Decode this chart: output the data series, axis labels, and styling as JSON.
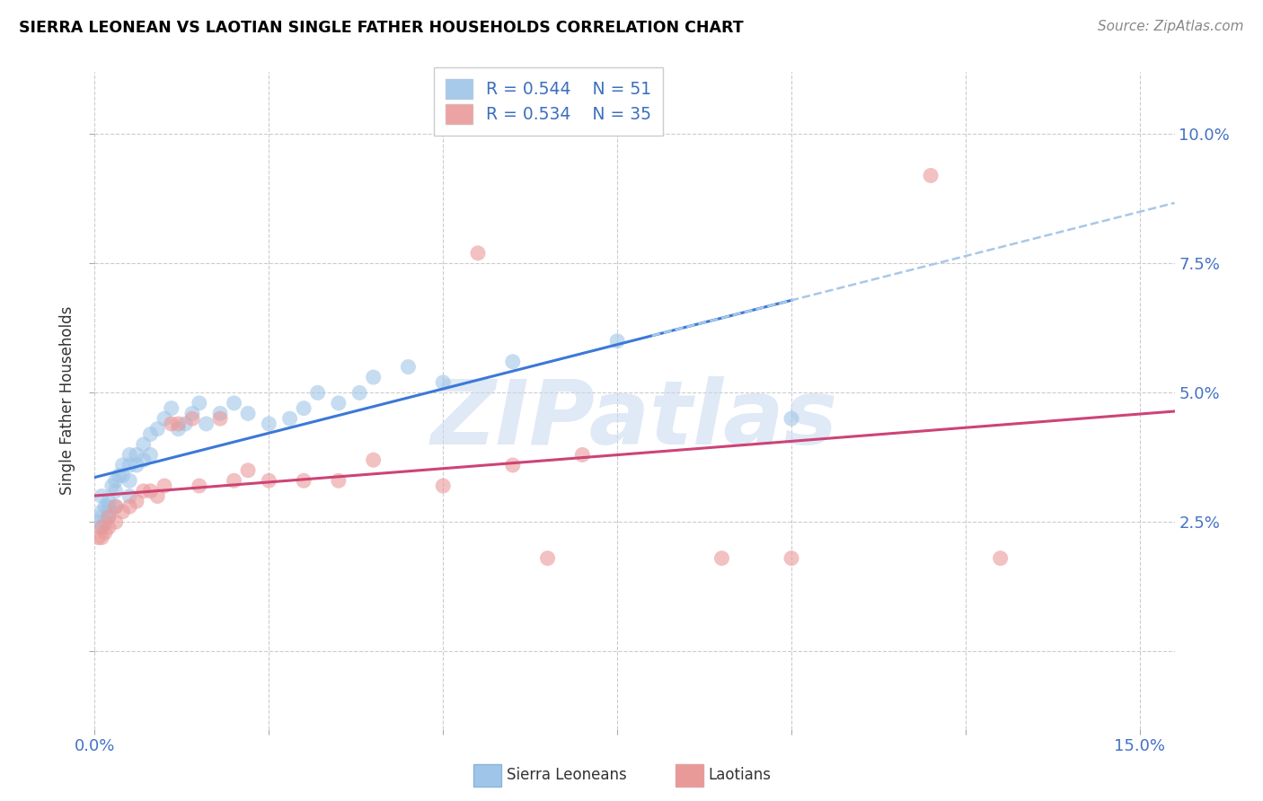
{
  "title": "SIERRA LEONEAN VS LAOTIAN SINGLE FATHER HOUSEHOLDS CORRELATION CHART",
  "source": "Source: ZipAtlas.com",
  "ylabel": "Single Father Households",
  "color_blue": "#9fc5e8",
  "color_pink": "#ea9999",
  "color_blue_line": "#3c78d8",
  "color_pink_line": "#cc4477",
  "color_blue_dashed": "#a8c8e8",
  "xlim": [
    0.0,
    0.155
  ],
  "ylim": [
    -0.015,
    0.112
  ],
  "xtick_vals": [
    0.0,
    0.025,
    0.05,
    0.075,
    0.1,
    0.125,
    0.15
  ],
  "xtick_labels": [
    "0.0%",
    "",
    "",
    "",
    "",
    "",
    "15.0%"
  ],
  "ytick_vals": [
    0.0,
    0.025,
    0.05,
    0.075,
    0.1
  ],
  "ytick_labels_right": [
    "",
    "2.5%",
    "5.0%",
    "7.5%",
    "10.0%"
  ],
  "legend_r1": "R = 0.544",
  "legend_n1": "N = 51",
  "legend_r2": "R = 0.534",
  "legend_n2": "N = 35",
  "sierra_x": [
    0.0005,
    0.001,
    0.001,
    0.001,
    0.001,
    0.0015,
    0.0015,
    0.002,
    0.002,
    0.002,
    0.002,
    0.0025,
    0.003,
    0.003,
    0.003,
    0.0035,
    0.004,
    0.004,
    0.005,
    0.005,
    0.005,
    0.005,
    0.006,
    0.006,
    0.007,
    0.007,
    0.008,
    0.008,
    0.009,
    0.01,
    0.011,
    0.012,
    0.013,
    0.014,
    0.015,
    0.016,
    0.018,
    0.02,
    0.022,
    0.025,
    0.028,
    0.03,
    0.032,
    0.035,
    0.038,
    0.04,
    0.045,
    0.05,
    0.06,
    0.075,
    0.1
  ],
  "sierra_y": [
    0.025,
    0.03,
    0.026,
    0.027,
    0.024,
    0.028,
    0.025,
    0.029,
    0.028,
    0.026,
    0.027,
    0.032,
    0.033,
    0.031,
    0.028,
    0.034,
    0.036,
    0.034,
    0.038,
    0.036,
    0.033,
    0.03,
    0.038,
    0.036,
    0.04,
    0.037,
    0.042,
    0.038,
    0.043,
    0.045,
    0.047,
    0.043,
    0.044,
    0.046,
    0.048,
    0.044,
    0.046,
    0.048,
    0.046,
    0.044,
    0.045,
    0.047,
    0.05,
    0.048,
    0.05,
    0.053,
    0.055,
    0.052,
    0.056,
    0.06,
    0.045
  ],
  "laotian_x": [
    0.0005,
    0.001,
    0.001,
    0.0015,
    0.002,
    0.002,
    0.003,
    0.003,
    0.004,
    0.005,
    0.006,
    0.007,
    0.008,
    0.009,
    0.01,
    0.011,
    0.012,
    0.014,
    0.015,
    0.018,
    0.02,
    0.022,
    0.025,
    0.03,
    0.035,
    0.04,
    0.05,
    0.055,
    0.06,
    0.065,
    0.07,
    0.09,
    0.1,
    0.12,
    0.13
  ],
  "laotian_y": [
    0.022,
    0.022,
    0.024,
    0.023,
    0.024,
    0.026,
    0.025,
    0.028,
    0.027,
    0.028,
    0.029,
    0.031,
    0.031,
    0.03,
    0.032,
    0.044,
    0.044,
    0.045,
    0.032,
    0.045,
    0.033,
    0.035,
    0.033,
    0.033,
    0.033,
    0.037,
    0.032,
    0.077,
    0.036,
    0.018,
    0.038,
    0.018,
    0.018,
    0.092,
    0.018
  ],
  "watermark_text": "ZIPatlas",
  "watermark_color": "#c8d8f0",
  "bg_color": "#ffffff"
}
